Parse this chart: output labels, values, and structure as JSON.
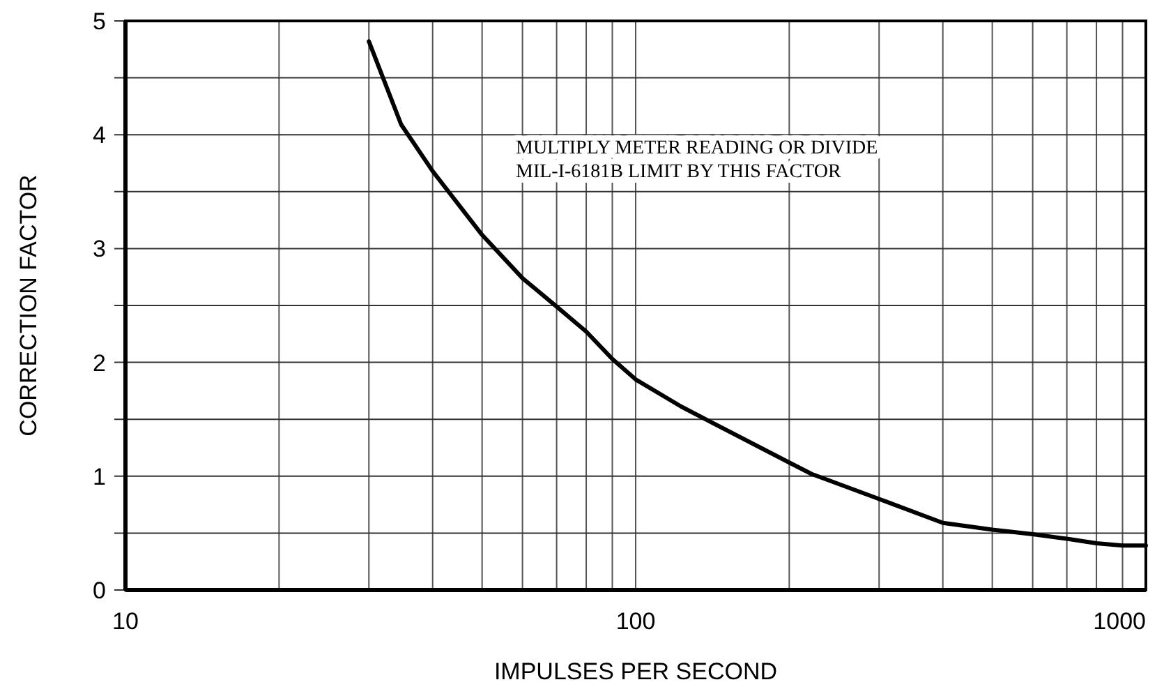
{
  "chart_data": {
    "type": "line",
    "xlabel": "IMPULSES PER SECOND",
    "ylabel": "CORRECTION FACTOR",
    "annotations": [
      "MULTIPLY METER READING OR DIVIDE\nMIL-I-6181B LIMIT BY THIS FACTOR"
    ],
    "x": [
      30,
      34.7,
      40,
      50,
      60,
      70,
      80,
      90,
      100,
      123,
      200,
      221,
      300,
      400,
      500,
      600,
      700,
      800,
      900,
      1000
    ],
    "series": [
      {
        "color": "#000000",
        "values": [
          4.82,
          4.09,
          3.68,
          3.12,
          2.74,
          2.49,
          2.27,
          2.03,
          1.85,
          1.61,
          1.12,
          1.02,
          0.8,
          0.59,
          0.53,
          0.49,
          0.45,
          0.41,
          0.39,
          0.39
        ]
      }
    ],
    "log": "x",
    "xlim": [
      10,
      1000
    ],
    "ylim": [
      0,
      5
    ],
    "xticks": [
      10,
      {
        "value": 20,
        "label": null
      },
      {
        "value": 30,
        "label": null
      },
      {
        "value": 40,
        "label": null
      },
      {
        "value": 50,
        "label": null
      },
      {
        "value": 60,
        "label": null
      },
      {
        "value": 70,
        "label": null
      },
      {
        "value": 80,
        "label": null
      },
      {
        "value": 90,
        "label": null
      },
      100,
      {
        "value": 200,
        "label": null
      },
      {
        "value": 300,
        "label": null
      },
      {
        "value": 400,
        "label": null
      },
      {
        "value": 500,
        "label": null
      },
      {
        "value": 600,
        "label": null
      },
      {
        "value": 700,
        "label": null
      },
      {
        "value": 800,
        "label": null
      },
      {
        "value": 900,
        "label": null
      },
      1000
    ],
    "yticks": [
      0,
      {
        "value": 0.5,
        "label": null
      },
      1,
      {
        "value": 1.5,
        "label": null
      },
      2,
      {
        "value": 2.5,
        "label": null
      },
      3,
      {
        "value": 3.5,
        "label": null
      },
      4,
      {
        "value": 4.5,
        "label": null
      },
      5
    ],
    "grid": true,
    "marker": "none",
    "line_style": "solid"
  }
}
